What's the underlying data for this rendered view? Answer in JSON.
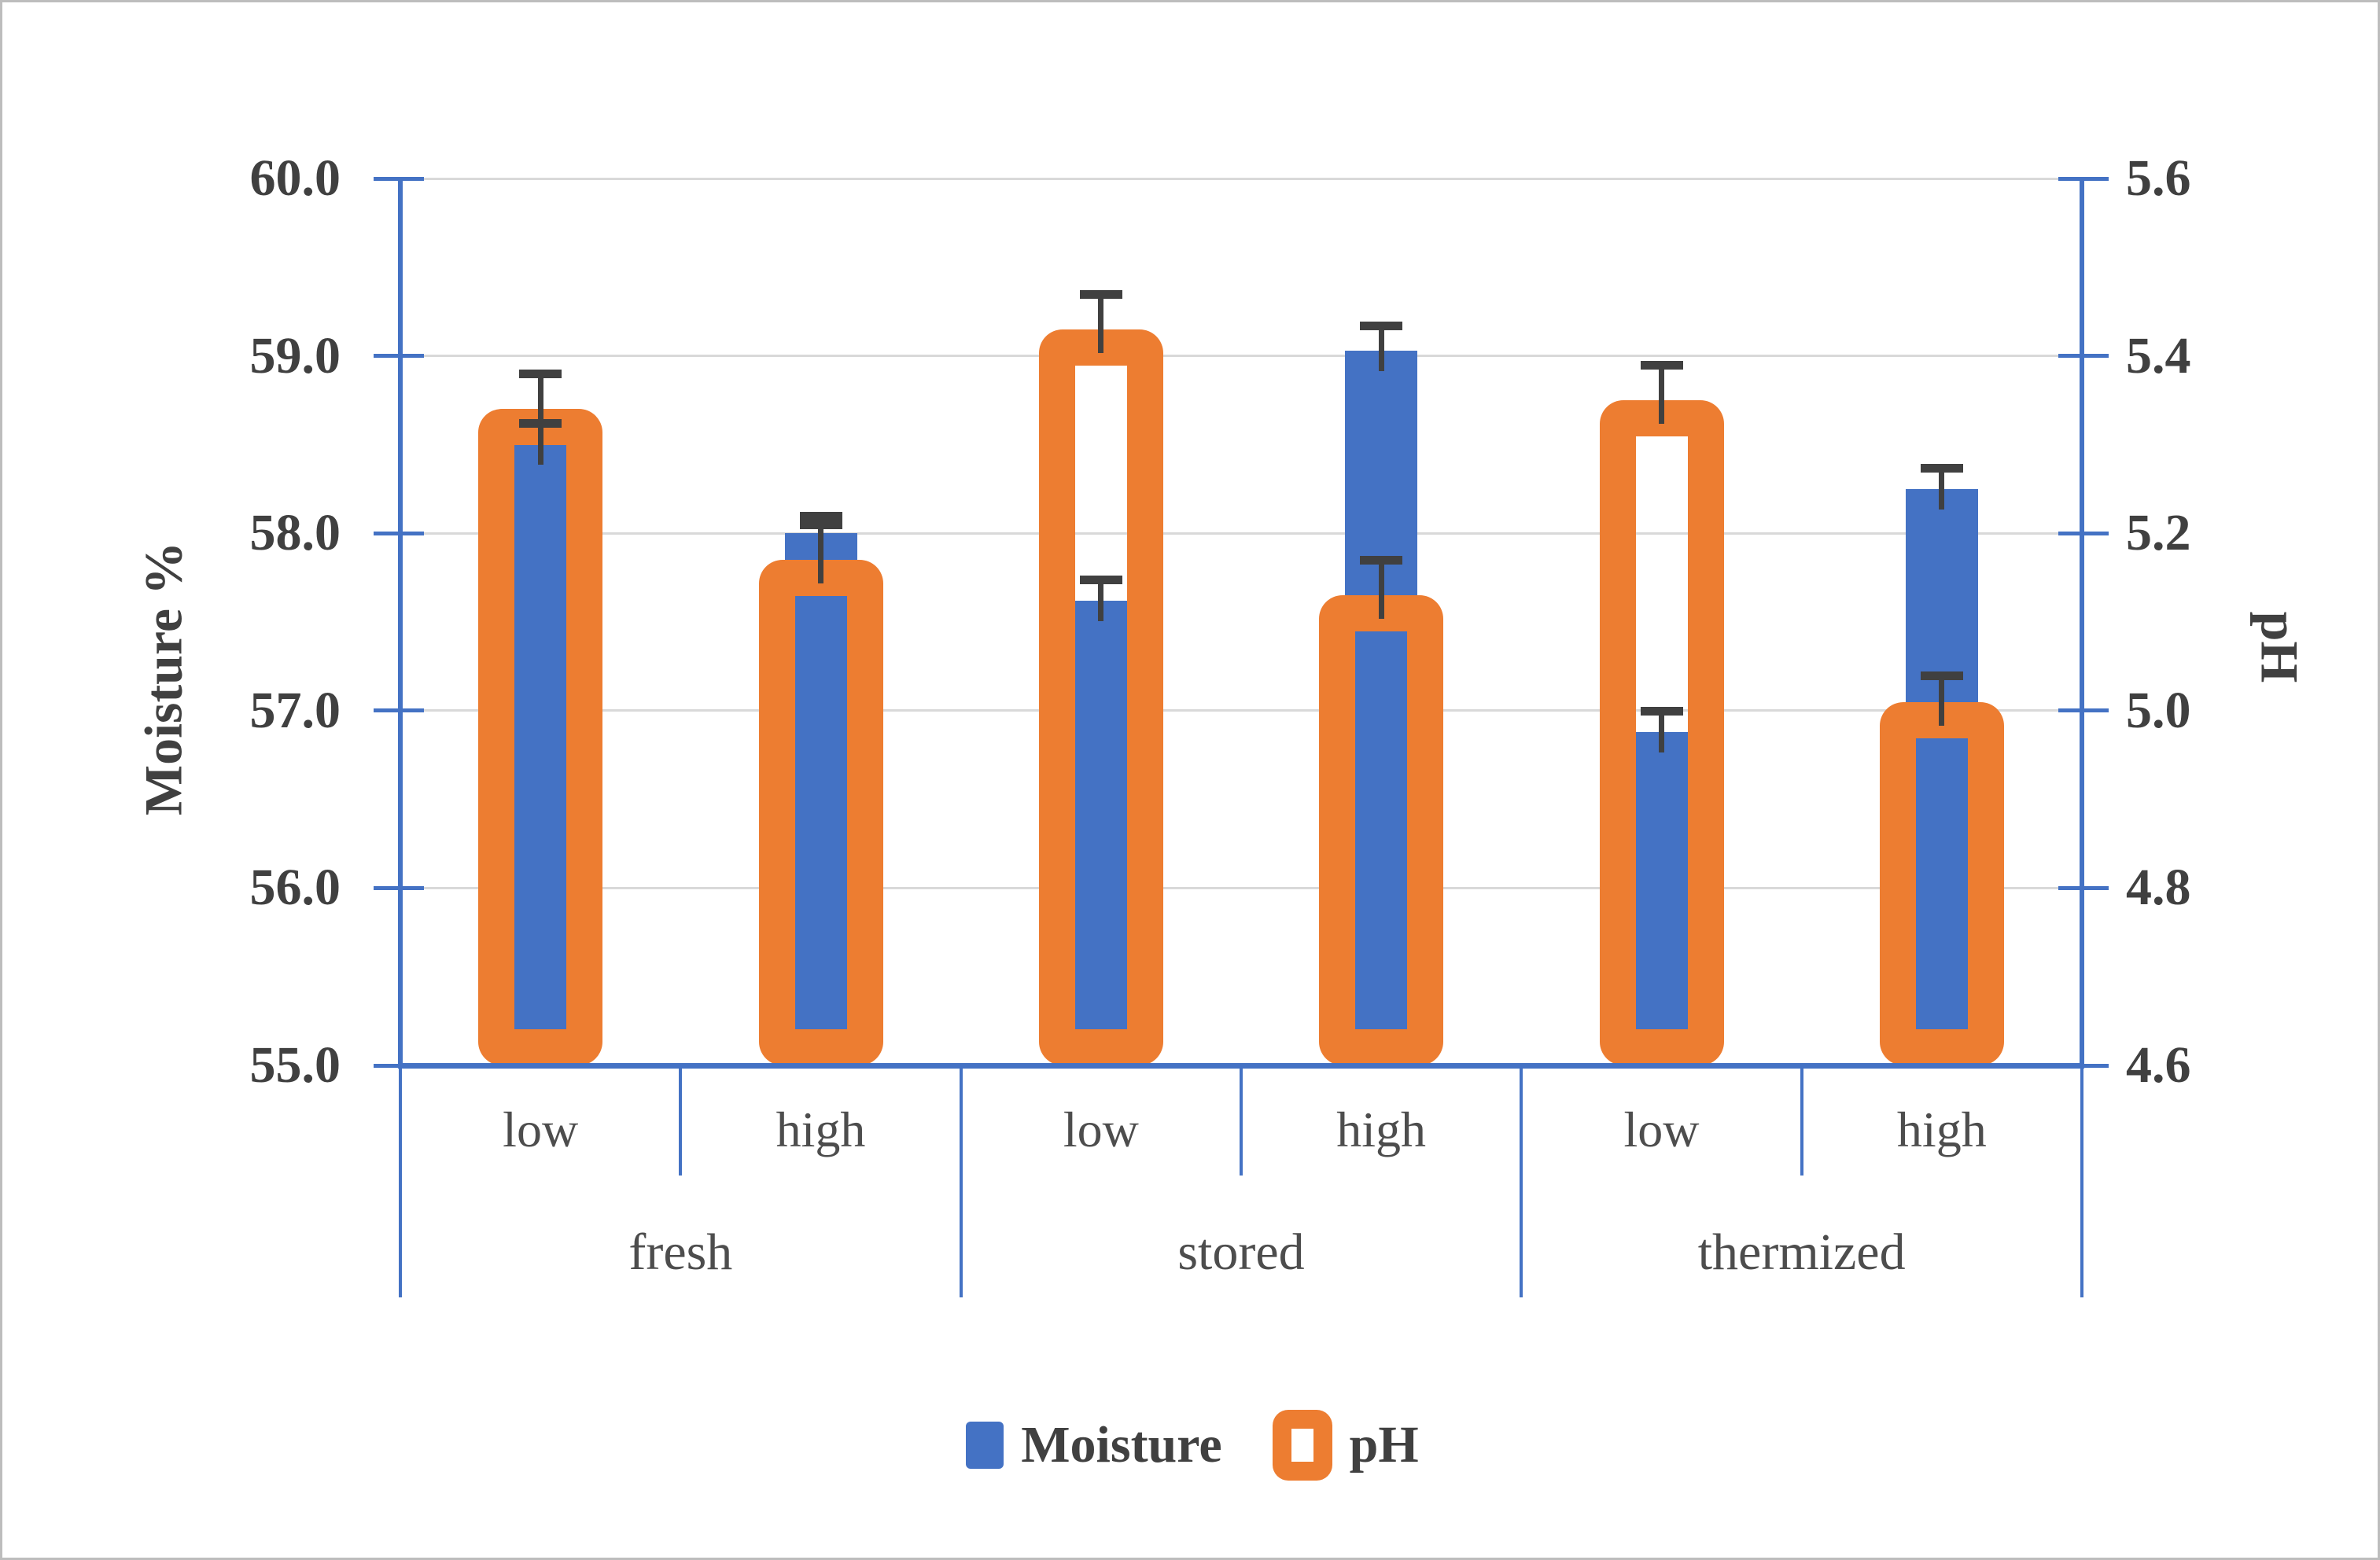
{
  "chart_data": {
    "type": "bar",
    "title": "",
    "ylabel_left": "Moisture %",
    "ylabel_right": "pH",
    "left_axis": {
      "min": 55.0,
      "max": 60.0,
      "step": 1.0,
      "tick_values": [
        60.0,
        59.0,
        58.0,
        57.0,
        56.0,
        55.0
      ],
      "tick_labels": [
        "60.0",
        "59.0",
        "58.0",
        "57.0",
        "56.0",
        "55.0"
      ]
    },
    "right_axis": {
      "min": 4.6,
      "max": 5.6,
      "step": 0.2,
      "tick_values": [
        5.6,
        5.4,
        5.2,
        5.0,
        4.8,
        4.6
      ],
      "tick_labels": [
        "5.6",
        "5.4",
        "5.2",
        "5.0",
        "4.8",
        "4.6"
      ]
    },
    "grid": true,
    "legend_position": "bottom",
    "groups": [
      {
        "label": "fresh",
        "levels": [
          "low",
          "high"
        ]
      },
      {
        "label": "stored",
        "levels": [
          "low",
          "high"
        ]
      },
      {
        "label": "thermized",
        "levels": [
          "low",
          "high"
        ]
      }
    ],
    "categories": [
      "fresh low",
      "fresh high",
      "stored low",
      "stored high",
      "thermized low",
      "thermized high"
    ],
    "series": [
      {
        "name": "Moisture",
        "axis": "left",
        "style": "solid",
        "color": "#4472C4",
        "values": [
          58.5,
          58.0,
          57.62,
          59.03,
          56.88,
          58.25
        ],
        "errors_upper": [
          0.12,
          0.1,
          0.12,
          0.14,
          0.12,
          0.12
        ]
      },
      {
        "name": "pH",
        "axis": "right",
        "style": "outlined",
        "color": "#ED7D31",
        "values": [
          5.34,
          5.17,
          5.43,
          5.13,
          5.35,
          5.01
        ],
        "errors_upper": [
          0.04,
          0.04,
          0.04,
          0.04,
          0.04,
          0.03
        ]
      }
    ],
    "colors": {
      "moisture_blue": "#4472C4",
      "ph_orange": "#ED7D31",
      "axis_blue": "#4472C4",
      "gridline_gray": "#D9D9D9",
      "error_bar_gray": "#404040",
      "text_gray": "#404040",
      "frame_border_gray": "#BDBDBD"
    }
  }
}
